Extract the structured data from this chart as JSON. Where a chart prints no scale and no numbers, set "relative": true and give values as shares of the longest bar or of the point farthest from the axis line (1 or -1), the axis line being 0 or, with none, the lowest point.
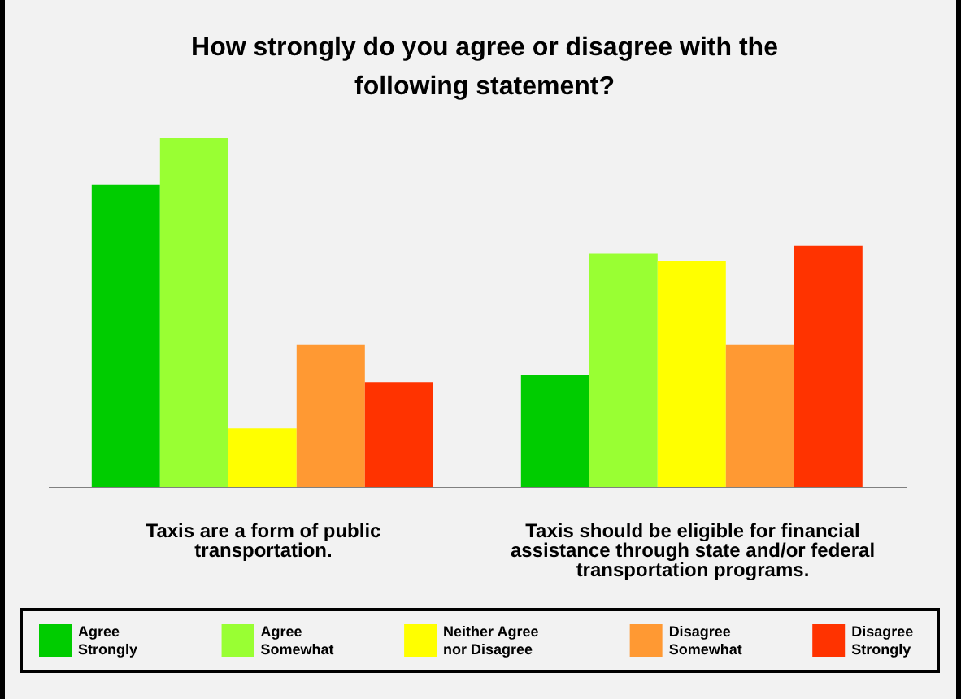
{
  "chart_data": {
    "type": "bar",
    "title": "How strongly do you agree or disagree with the following statement?",
    "relative": true,
    "categories": [
      "Taxis are a form of public transportation.",
      "Taxis should be eligible for financial assistance through state and/or federal transportation programs."
    ],
    "series": [
      {
        "name": "Agree Strongly",
        "color": "#00cc00",
        "values": [
          0.868,
          0.323
        ]
      },
      {
        "name": "Agree Somewhat",
        "color": "#99ff33",
        "values": [
          1,
          0.671
        ]
      },
      {
        "name": "Neither Agree nor Disagree",
        "color": "#ffff00",
        "values": [
          0.169,
          0.649
        ]
      },
      {
        "name": "Disagree Somewhat",
        "color": "#ff9933",
        "values": [
          0.41,
          0.41
        ]
      },
      {
        "name": "Disagree Strongly",
        "color": "#ff3300",
        "values": [
          0.302,
          0.691
        ]
      }
    ],
    "legend": "bottom",
    "grid": false
  }
}
